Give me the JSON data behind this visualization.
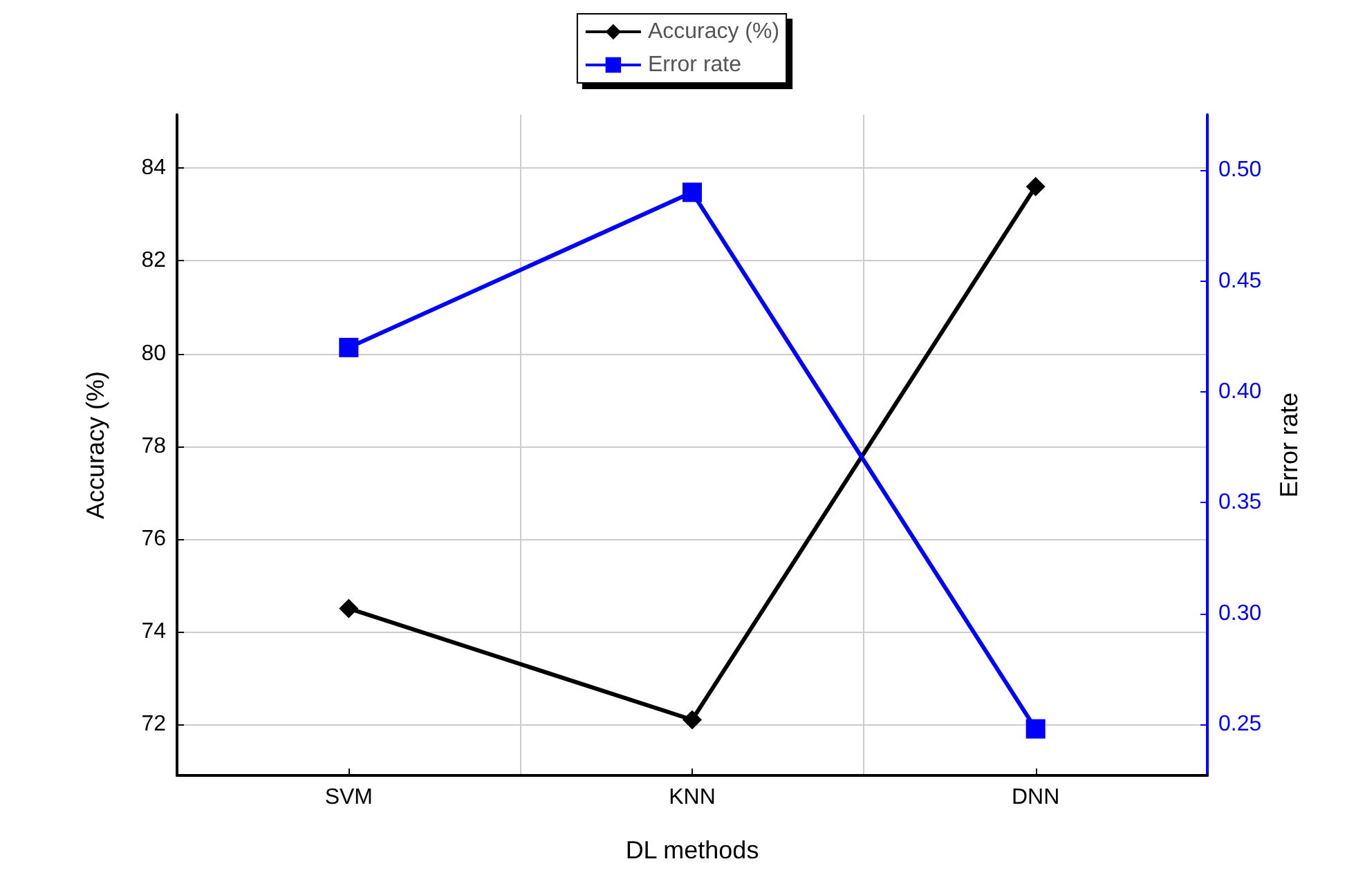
{
  "chart_data": {
    "type": "line",
    "xlabel": "DL methods",
    "ylabel": "Accuracy (%)",
    "y2label": "Error rate",
    "categories": [
      "SVM",
      "KNN",
      "DNN"
    ],
    "series": [
      {
        "name": "Accuracy (%)",
        "color": "#000000",
        "marker": "diamond",
        "values": [
          74.5,
          72.1,
          83.6
        ]
      },
      {
        "name": "Error rate",
        "color": "#0000ff",
        "marker": "square",
        "axis": "y2",
        "values": [
          0.42,
          0.49,
          0.248
        ]
      }
    ],
    "ylim": [
      70.9,
      85.15
    ],
    "yticks": [
      72,
      74,
      76,
      78,
      80,
      82,
      84
    ],
    "y2lim": [
      0.227,
      0.525
    ],
    "y2ticks": [
      0.25,
      {
        "value": 0.3,
        "label": "0.30"
      },
      0.35,
      {
        "value": 0.4,
        "label": "0.40"
      },
      0.45,
      {
        "value": 0.5,
        "label": "0.50"
      }
    ],
    "grid": true,
    "legend": "top"
  }
}
